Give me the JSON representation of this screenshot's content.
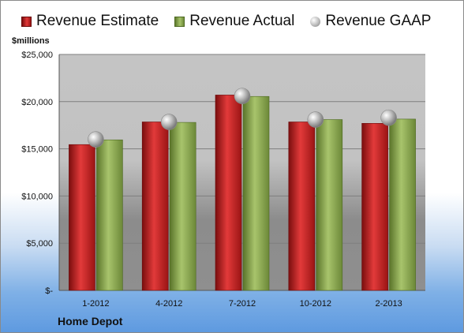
{
  "chart_data": {
    "type": "bar",
    "company": "Home Depot",
    "units_label": "$millions",
    "categories": [
      "1-2012",
      "4-2012",
      "7-2012",
      "10-2012",
      "2-2013"
    ],
    "series": [
      {
        "name": "Revenue Estimate",
        "kind": "bar",
        "color": "#c81e1e",
        "values": [
          15450,
          17850,
          20700,
          17850,
          17700
        ]
      },
      {
        "name": "Revenue Actual",
        "kind": "bar",
        "color": "#8fae50",
        "values": [
          15950,
          17800,
          20550,
          18100,
          18150
        ]
      },
      {
        "name": "Revenue GAAP",
        "kind": "marker",
        "color": "#b4b4b4",
        "values": [
          16000,
          17850,
          20600,
          18100,
          18300
        ]
      }
    ],
    "ylim": [
      0,
      25000
    ],
    "yticks": [
      0,
      5000,
      10000,
      15000,
      20000,
      25000
    ],
    "ytick_labels": [
      "$-",
      "$5,000",
      "$10,000",
      "$15,000",
      "$20,000",
      "$25,000"
    ],
    "grid": true,
    "legend": "top"
  }
}
